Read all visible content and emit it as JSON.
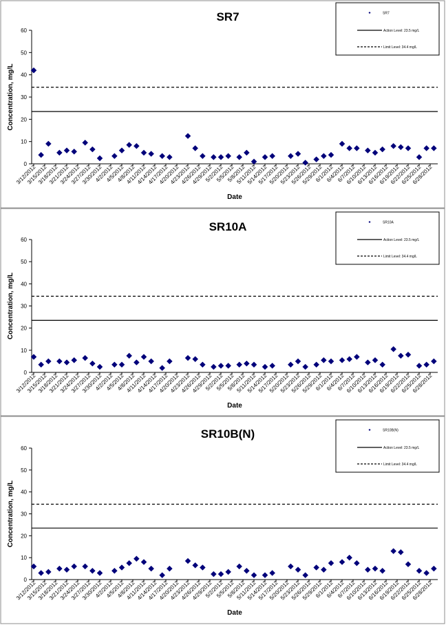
{
  "colors": {
    "marker": "#00007a",
    "action_line": "#000000",
    "limit_line": "#000000",
    "panel_border": "#8c8c8c"
  },
  "legend_labels": {
    "action": "Action Level: 23.5 mg/L",
    "limit": "Limit Level: 34.4 mg/L"
  },
  "chart_data": [
    {
      "type": "scatter",
      "title": "SR7",
      "xlabel": "Date",
      "ylabel": "Concentration, mg/L",
      "ylim": [
        0,
        60
      ],
      "yticks": [
        0,
        10,
        20,
        30,
        40,
        50,
        60
      ],
      "xticks": [
        "3/12/2012",
        "3/15/2012",
        "3/18/2012",
        "3/21/2012",
        "3/24/2012",
        "3/27/2012",
        "3/30/2012",
        "4/2/2012",
        "4/5/2012",
        "4/8/2012",
        "4/11/2012",
        "4/14/2012",
        "4/17/2012",
        "4/20/2012",
        "4/23/2012",
        "4/26/2012",
        "4/29/2012",
        "5/2/2012",
        "5/5/2012",
        "5/8/2012",
        "5/11/2012",
        "5/14/2012",
        "5/17/2012",
        "5/20/2012",
        "5/23/2012",
        "5/26/2012",
        "5/29/2012",
        "6/1/2012",
        "6/4/2012",
        "6/7/2012",
        "6/10/2012",
        "6/13/2012",
        "6/16/2012",
        "6/19/2012",
        "6/22/2012",
        "6/25/2012",
        "6/28/2012"
      ],
      "series": [
        {
          "name": "SR7",
          "x": [
            "3/12/2012",
            "3/14/2012",
            "3/16/2012",
            "3/19/2012",
            "3/21/2012",
            "3/23/2012",
            "3/26/2012",
            "3/28/2012",
            "3/30/2012",
            "4/3/2012",
            "4/5/2012",
            "4/7/2012",
            "4/9/2012",
            "4/11/2012",
            "4/13/2012",
            "4/16/2012",
            "4/18/2012",
            "4/23/2012",
            "4/25/2012",
            "4/27/2012",
            "4/30/2012",
            "5/2/2012",
            "5/4/2012",
            "5/7/2012",
            "5/9/2012",
            "5/11/2012",
            "5/14/2012",
            "5/16/2012",
            "5/21/2012",
            "5/23/2012",
            "5/25/2012",
            "5/28/2012",
            "5/30/2012",
            "6/1/2012",
            "6/4/2012",
            "6/6/2012",
            "6/8/2012",
            "6/11/2012",
            "6/13/2012",
            "6/15/2012",
            "6/18/2012",
            "6/20/2012",
            "6/22/2012",
            "6/25/2012",
            "6/27/2012",
            "6/29/2012"
          ],
          "y": [
            42,
            4,
            9,
            5,
            6,
            5.5,
            9.5,
            6.5,
            2.5,
            3.5,
            6,
            8.5,
            8,
            5,
            4.5,
            3.5,
            3,
            12.5,
            7,
            3.5,
            3,
            3,
            3.5,
            3,
            5,
            1,
            3,
            3.5,
            3.5,
            4.5,
            0.5,
            2,
            3.5,
            4,
            9,
            7,
            7,
            6,
            5,
            6.5,
            8,
            7.5,
            7,
            3,
            7,
            7
          ]
        }
      ],
      "hlines": [
        {
          "name": "Action Level: 23.5 mg/L",
          "y": 23.5,
          "style": "solid"
        },
        {
          "name": "Limit Level: 34.4 mg/L",
          "y": 34.4,
          "style": "dashed"
        }
      ],
      "legend_position": "top-right"
    },
    {
      "type": "scatter",
      "title": "SR10A",
      "xlabel": "Date",
      "ylabel": "Concentration, mg/L",
      "ylim": [
        0,
        60
      ],
      "yticks": [
        0,
        10,
        20,
        30,
        40,
        50,
        60
      ],
      "xticks": [
        "3/12/2012",
        "3/15/2012",
        "3/18/2012",
        "3/21/2012",
        "3/24/2012",
        "3/27/2012",
        "3/30/2012",
        "4/2/2012",
        "4/5/2012",
        "4/8/2012",
        "4/11/2012",
        "4/14/2012",
        "4/17/2012",
        "4/20/2012",
        "4/23/2012",
        "4/26/2012",
        "4/29/2012",
        "5/2/2012",
        "5/5/2012",
        "5/8/2012",
        "5/11/2012",
        "5/14/2012",
        "5/17/2012",
        "5/20/2012",
        "5/23/2012",
        "5/26/2012",
        "5/29/2012",
        "6/1/2012",
        "6/4/2012",
        "6/7/2012",
        "6/10/2012",
        "6/13/2012",
        "6/16/2012",
        "6/19/2012",
        "6/22/2012",
        "6/25/2012",
        "6/28/2012"
      ],
      "series": [
        {
          "name": "SR10A",
          "x": [
            "3/12/2012",
            "3/14/2012",
            "3/16/2012",
            "3/19/2012",
            "3/21/2012",
            "3/23/2012",
            "3/26/2012",
            "3/28/2012",
            "3/30/2012",
            "4/3/2012",
            "4/5/2012",
            "4/7/2012",
            "4/9/2012",
            "4/11/2012",
            "4/13/2012",
            "4/16/2012",
            "4/18/2012",
            "4/23/2012",
            "4/25/2012",
            "4/27/2012",
            "4/30/2012",
            "5/2/2012",
            "5/4/2012",
            "5/7/2012",
            "5/9/2012",
            "5/11/2012",
            "5/14/2012",
            "5/16/2012",
            "5/21/2012",
            "5/23/2012",
            "5/25/2012",
            "5/28/2012",
            "5/30/2012",
            "6/1/2012",
            "6/4/2012",
            "6/6/2012",
            "6/8/2012",
            "6/11/2012",
            "6/13/2012",
            "6/15/2012",
            "6/18/2012",
            "6/20/2012",
            "6/22/2012",
            "6/25/2012",
            "6/27/2012",
            "6/29/2012"
          ],
          "y": [
            7,
            3.5,
            5,
            5,
            4.5,
            5.5,
            6.5,
            4,
            2.5,
            3.5,
            3.5,
            7.5,
            4.5,
            7,
            5,
            2,
            5,
            6.5,
            6,
            3.5,
            2.5,
            3,
            3,
            3.5,
            4,
            3.5,
            2.5,
            3,
            3.5,
            5,
            2.5,
            3.5,
            5.5,
            5,
            5.5,
            6,
            7,
            4.5,
            5.5,
            3.5,
            10.5,
            7.5,
            8,
            3,
            3.5,
            5
          ]
        }
      ],
      "hlines": [
        {
          "name": "Action Level: 23.5 mg/L",
          "y": 23.5,
          "style": "solid"
        },
        {
          "name": "Limit Level: 34.4 mg/L",
          "y": 34.4,
          "style": "dashed"
        }
      ],
      "legend_position": "top-right"
    },
    {
      "type": "scatter",
      "title": "SR10B(N)",
      "xlabel": "Date",
      "ylabel": "Concentration, mg/L",
      "ylim": [
        0,
        60
      ],
      "yticks": [
        0,
        10,
        20,
        30,
        40,
        50,
        60
      ],
      "xticks": [
        "3/12/2012",
        "3/15/2012",
        "3/18/2012",
        "3/21/2012",
        "3/24/2012",
        "3/27/2012",
        "3/30/2012",
        "4/2/2012",
        "4/5/2012",
        "4/8/2012",
        "4/11/2012",
        "4/14/2012",
        "4/17/2012",
        "4/20/2012",
        "4/23/2012",
        "4/26/2012",
        "4/29/2012",
        "5/2/2012",
        "5/5/2012",
        "5/8/2012",
        "5/11/2012",
        "5/14/2012",
        "5/17/2012",
        "5/20/2012",
        "5/23/2012",
        "5/26/2012",
        "5/29/2012",
        "6/1/2012",
        "6/4/2012",
        "6/7/2012",
        "6/10/2012",
        "6/13/2012",
        "6/16/2012",
        "6/19/2012",
        "6/22/2012",
        "6/25/2012",
        "6/28/2012"
      ],
      "series": [
        {
          "name": "SR10B(N)",
          "x": [
            "3/12/2012",
            "3/14/2012",
            "3/16/2012",
            "3/19/2012",
            "3/21/2012",
            "3/23/2012",
            "3/26/2012",
            "3/28/2012",
            "3/30/2012",
            "4/3/2012",
            "4/5/2012",
            "4/7/2012",
            "4/9/2012",
            "4/11/2012",
            "4/13/2012",
            "4/16/2012",
            "4/18/2012",
            "4/23/2012",
            "4/25/2012",
            "4/27/2012",
            "4/30/2012",
            "5/2/2012",
            "5/4/2012",
            "5/7/2012",
            "5/9/2012",
            "5/11/2012",
            "5/14/2012",
            "5/16/2012",
            "5/21/2012",
            "5/23/2012",
            "5/25/2012",
            "5/28/2012",
            "5/30/2012",
            "6/1/2012",
            "6/4/2012",
            "6/6/2012",
            "6/8/2012",
            "6/11/2012",
            "6/13/2012",
            "6/15/2012",
            "6/18/2012",
            "6/20/2012",
            "6/22/2012",
            "6/25/2012",
            "6/27/2012",
            "6/29/2012"
          ],
          "y": [
            6,
            3,
            3.5,
            5,
            4.5,
            6,
            6,
            4,
            3,
            4,
            5.5,
            7.5,
            9.5,
            8,
            5,
            2,
            5,
            8.5,
            6.5,
            5.5,
            2.5,
            2.5,
            3.5,
            6,
            4,
            2,
            2,
            3,
            6,
            4.5,
            2,
            5.5,
            4.5,
            7.5,
            8,
            10,
            7.5,
            4.5,
            5,
            4,
            13,
            12.5,
            7,
            4,
            3,
            5
          ]
        }
      ],
      "hlines": [
        {
          "name": "Action Level: 23.5 mg/L",
          "y": 23.5,
          "style": "solid"
        },
        {
          "name": "Limit Level: 34.4 mg/L",
          "y": 34.4,
          "style": "dashed"
        }
      ],
      "legend_position": "top-right"
    }
  ]
}
